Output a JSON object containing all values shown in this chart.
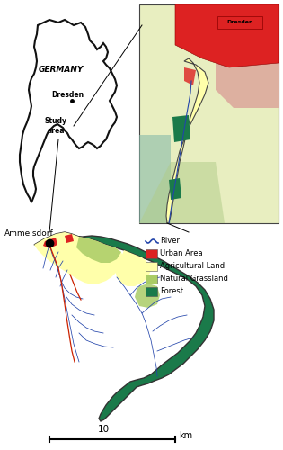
{
  "figure_size": [
    3.15,
    5.0
  ],
  "dpi": 100,
  "bg_color": "#ffffff",
  "colors": {
    "river_line": "#2244aa",
    "river_red": "#cc2200",
    "urban": "#dd2222",
    "agricultural": "#ffffaa",
    "grassland": "#aacc66",
    "forest": "#1a7a4a",
    "germany_fill": "#ffffff",
    "germany_border": "#111111",
    "detail_bg_yellow": "#e8eec0",
    "detail_bg_pink": "#ddb0a0",
    "detail_bg_green": "#b0cc88",
    "detail_bg_teal": "#88bbaa",
    "detail_border": "#444444"
  },
  "legend_items": [
    {
      "label": "River",
      "color": "#2244aa",
      "type": "line"
    },
    {
      "label": "Urban Area",
      "color": "#dd2222",
      "type": "patch"
    },
    {
      "label": "Agricultural Land",
      "color": "#ffffaa",
      "type": "patch"
    },
    {
      "label": "Natural Grassland",
      "color": "#aacc66",
      "type": "patch"
    },
    {
      "label": "Forest",
      "color": "#1a7a4a",
      "type": "patch"
    }
  ],
  "labels": {
    "germany": "GERMANY",
    "dresden_germany": "Dresden",
    "study_area": "Study\narea",
    "ammelsdorf": "Ammelsdorf",
    "dresden_map": "Dresden"
  },
  "scale_bar": {
    "label": "10",
    "unit": "km"
  }
}
